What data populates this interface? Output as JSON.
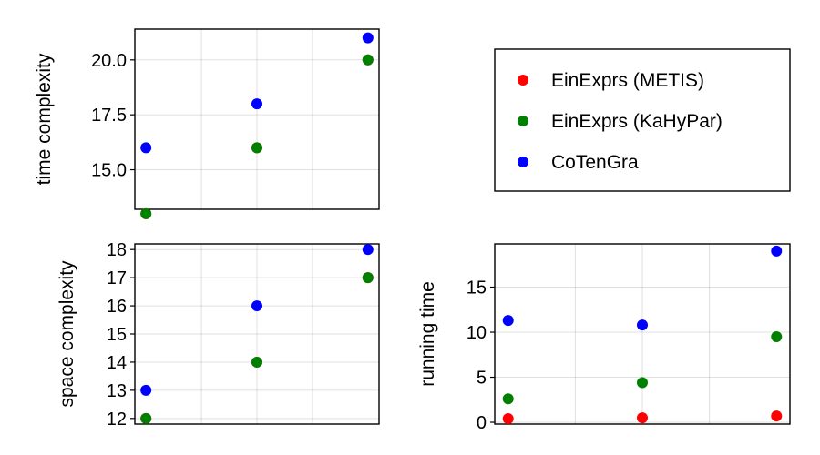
{
  "chart_data": [
    {
      "type": "scatter",
      "panel": "top-left",
      "xlabel": "",
      "ylabel": "time complexity",
      "ylim": [
        13.2,
        21.4
      ],
      "yticks": [
        15.0,
        17.5,
        20.0
      ],
      "ytick_labels": [
        "15.0",
        "17.5",
        "20.0"
      ],
      "x": [
        1,
        2,
        3
      ],
      "series": [
        {
          "name": "EinExprs (METIS)",
          "color": "#ff0000",
          "values": [
            13.0,
            16.0,
            20.0
          ]
        },
        {
          "name": "EinExprs (KaHyPar)",
          "color": "#008000",
          "values": [
            13.0,
            16.0,
            20.0
          ]
        },
        {
          "name": "CoTenGra",
          "color": "#0000ff",
          "values": [
            16.0,
            18.0,
            21.0
          ]
        }
      ],
      "grid": true
    },
    {
      "type": "scatter",
      "panel": "bottom-left",
      "xlabel": "",
      "ylabel": "space complexity",
      "ylim": [
        11.8,
        18.2
      ],
      "yticks": [
        12,
        13,
        14,
        15,
        16,
        17,
        18
      ],
      "ytick_labels": [
        "12",
        "13",
        "14",
        "15",
        "16",
        "17",
        "18"
      ],
      "x": [
        1,
        2,
        3
      ],
      "series": [
        {
          "name": "EinExprs (METIS)",
          "color": "#ff0000",
          "values": [
            12,
            14,
            17
          ]
        },
        {
          "name": "EinExprs (KaHyPar)",
          "color": "#008000",
          "values": [
            12,
            14,
            17
          ]
        },
        {
          "name": "CoTenGra",
          "color": "#0000ff",
          "values": [
            13,
            16,
            18
          ]
        }
      ],
      "grid": true
    },
    {
      "type": "scatter",
      "panel": "bottom-right",
      "xlabel": "",
      "ylabel": "running time",
      "ylim": [
        -0.2,
        19.8
      ],
      "yticks": [
        0,
        5,
        10,
        15
      ],
      "ytick_labels": [
        "0",
        "5",
        "10",
        "15"
      ],
      "x": [
        1,
        2,
        3
      ],
      "series": [
        {
          "name": "EinExprs (METIS)",
          "color": "#ff0000",
          "values": [
            0.4,
            0.5,
            0.7
          ]
        },
        {
          "name": "EinExprs (KaHyPar)",
          "color": "#008000",
          "values": [
            2.6,
            4.4,
            9.5
          ]
        },
        {
          "name": "CoTenGra",
          "color": "#0000ff",
          "values": [
            11.3,
            10.8,
            19.0
          ]
        }
      ],
      "grid": true
    }
  ],
  "legend": {
    "placement": "top-right",
    "entries": [
      {
        "label": "EinExprs (METIS)",
        "color": "#ff0000"
      },
      {
        "label": "EinExprs (KaHyPar)",
        "color": "#008000"
      },
      {
        "label": "CoTenGra",
        "color": "#0000ff"
      }
    ]
  }
}
